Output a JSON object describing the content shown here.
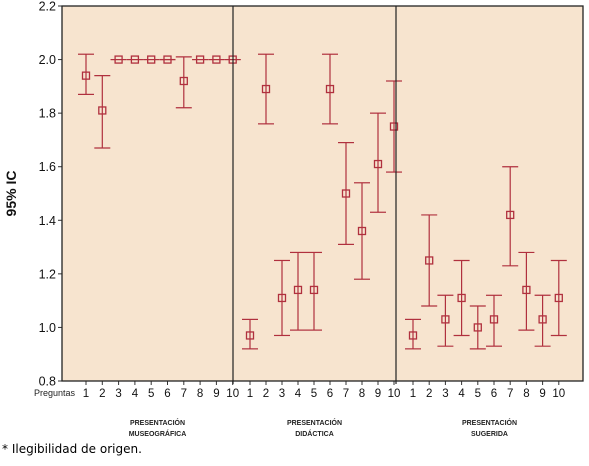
{
  "chart_data": {
    "type": "errorbar",
    "ylabel": "95% IC",
    "x_row_label": "Preguntas",
    "ylim": [
      0.8,
      2.2
    ],
    "yticks": [
      "0.8",
      "1.0",
      "1.2",
      "1.4",
      "1.6",
      "1.8",
      "2.0",
      "2.2"
    ],
    "background_color": "#f7e4cf",
    "series_color": "#b0303e",
    "groups": [
      {
        "label_line1": "PRESENTACIÓN",
        "label_line2": "MUSEOGRÁFICA",
        "questions": [
          "1",
          "2",
          "3",
          "4",
          "5",
          "6",
          "7",
          "8",
          "9",
          "10"
        ],
        "mean": [
          1.94,
          1.81,
          2.0,
          2.0,
          2.0,
          2.0,
          1.92,
          2.0,
          2.0,
          2.0
        ],
        "lower": [
          1.87,
          1.67,
          2.0,
          2.0,
          2.0,
          2.0,
          1.82,
          2.0,
          2.0,
          2.0
        ],
        "upper": [
          2.02,
          1.94,
          2.0,
          2.0,
          2.0,
          2.0,
          2.01,
          2.0,
          2.0,
          2.0
        ]
      },
      {
        "label_line1": "PRESENTACIÓN",
        "label_line2": "DIDÁCTICA",
        "questions": [
          "1",
          "2",
          "3",
          "4",
          "5",
          "6",
          "7",
          "8",
          "9",
          "10"
        ],
        "mean": [
          0.97,
          1.89,
          1.11,
          1.14,
          1.14,
          1.89,
          1.5,
          1.36,
          1.61,
          1.75
        ],
        "lower": [
          0.92,
          1.76,
          0.97,
          0.99,
          0.99,
          1.76,
          1.31,
          1.18,
          1.43,
          1.58
        ],
        "upper": [
          1.03,
          2.02,
          1.25,
          1.28,
          1.28,
          2.02,
          1.69,
          1.54,
          1.8,
          1.92
        ]
      },
      {
        "label_line1": "PRESENTACIÓN",
        "label_line2": "SUGERIDA",
        "questions": [
          "1",
          "2",
          "3",
          "4",
          "5",
          "6",
          "7",
          "8",
          "9",
          "10"
        ],
        "mean": [
          0.97,
          1.25,
          1.03,
          1.11,
          1.0,
          1.03,
          1.42,
          1.14,
          1.03,
          1.11
        ],
        "lower": [
          0.92,
          1.08,
          0.93,
          0.97,
          0.92,
          0.93,
          1.23,
          0.99,
          0.93,
          0.97
        ],
        "upper": [
          1.03,
          1.42,
          1.12,
          1.25,
          1.08,
          1.12,
          1.6,
          1.28,
          1.12,
          1.25
        ]
      }
    ]
  },
  "footnote": "* Ilegibilidad de origen."
}
